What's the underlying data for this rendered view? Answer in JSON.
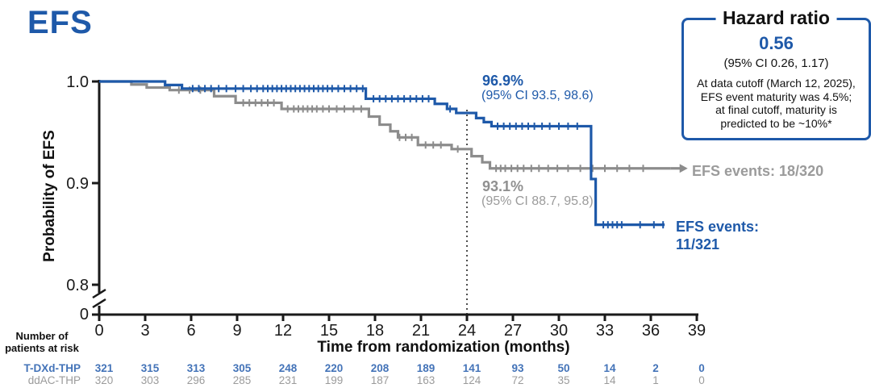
{
  "page": {
    "title": "EFS"
  },
  "colors": {
    "blue": "#1E59A9",
    "blue_light": "#4373B8",
    "gray": "#8C8C8C",
    "gray_text": "#909090",
    "gray_text_light": "#9B9B9B",
    "axis": "#1A1A1A",
    "landmark_line": "#3A3A3A"
  },
  "hazard_box": {
    "title": "Hazard ratio",
    "value": "0.56",
    "ci": "(95% CI 0.26, 1.17)",
    "note_lines": [
      "At data cutoff (March 12, 2025),",
      "EFS event maturity was 4.5%;",
      "at final cutoff, maturity is",
      "predicted to be ~10%*"
    ]
  },
  "chart_data": {
    "type": "line",
    "subtype": "kaplan-meier-step",
    "title": "EFS",
    "xlabel": "Time from randomization (months)",
    "ylabel": "Probability of EFS",
    "x_ticks": [
      0,
      3,
      6,
      9,
      12,
      15,
      18,
      21,
      24,
      27,
      30,
      33,
      36,
      39
    ],
    "xlim": [
      0,
      39
    ],
    "y_ticks": [
      {
        "value": 1.0,
        "label": "1.0"
      },
      {
        "value": 0.9,
        "label": "0.9"
      },
      {
        "value": 0.8,
        "label": "0.8"
      },
      {
        "value": 0.0,
        "label": "0"
      }
    ],
    "y_axis_break_between": [
      0,
      0.8
    ],
    "grid": false,
    "landmark_month": 24,
    "annotations": {
      "tdxd_rate_24m": "96.9%",
      "tdxd_ci_24m": "(95% CI 93.5, 98.6)",
      "ddac_rate_24m": "93.1%",
      "ddac_ci_24m": "(95% CI 88.7, 95.8)",
      "ddac_events": "EFS events: 18/320",
      "tdxd_events_line1": "EFS events:",
      "tdxd_events_line2": "11/321"
    },
    "series": [
      {
        "name": "T-DXd-THP",
        "color": "#1E59A9",
        "rate_at_24m_pct": 96.9,
        "events": "11/321",
        "end_month": 36.9,
        "end_arrow": false,
        "steps": [
          [
            0,
            1.0
          ],
          [
            4.3,
            0.9965
          ],
          [
            5.4,
            0.993
          ],
          [
            17.4,
            0.983
          ],
          [
            21.9,
            0.978
          ],
          [
            22.7,
            0.973
          ],
          [
            23.3,
            0.969
          ],
          [
            24.6,
            0.964
          ],
          [
            25.1,
            0.96
          ],
          [
            25.6,
            0.956
          ],
          [
            32.1,
            0.904
          ],
          [
            32.4,
            0.859
          ]
        ],
        "censor_months": [
          6.1,
          6.5,
          6.9,
          7.3,
          7.8,
          8.3,
          8.9,
          9.4,
          9.9,
          10.3,
          10.7,
          11.0,
          11.3,
          11.6,
          11.9,
          12.2,
          12.5,
          12.8,
          13.1,
          13.4,
          13.7,
          14.0,
          14.3,
          14.6,
          14.9,
          15.2,
          15.6,
          16.0,
          16.4,
          16.8,
          17.2,
          17.9,
          18.3,
          18.7,
          19.1,
          19.5,
          19.9,
          20.3,
          20.7,
          21.1,
          21.5,
          22.9,
          26.0,
          26.4,
          26.8,
          27.2,
          27.6,
          28.0,
          28.4,
          28.9,
          29.4,
          30.0,
          30.6,
          31.2,
          32.9,
          33.2,
          33.5,
          33.8,
          34.1,
          35.3,
          36.2,
          36.8
        ]
      },
      {
        "name": "ddAC-THP",
        "color": "#8C8C8C",
        "rate_at_24m_pct": 93.1,
        "events": "18/320",
        "end_month": 37.3,
        "end_arrow": true,
        "steps": [
          [
            0,
            1.0
          ],
          [
            2.1,
            0.997
          ],
          [
            3.1,
            0.994
          ],
          [
            4.6,
            0.9915
          ],
          [
            7.5,
            0.9855
          ],
          [
            8.9,
            0.979
          ],
          [
            11.9,
            0.973
          ],
          [
            17.6,
            0.9655
          ],
          [
            18.3,
            0.9575
          ],
          [
            19.0,
            0.951
          ],
          [
            19.5,
            0.945
          ],
          [
            20.8,
            0.9375
          ],
          [
            23.0,
            0.9335
          ],
          [
            24.3,
            0.9265
          ],
          [
            25.0,
            0.9205
          ],
          [
            25.5,
            0.9145
          ]
        ],
        "censor_months": [
          5.2,
          5.9,
          6.6,
          9.4,
          9.8,
          10.2,
          10.6,
          11.0,
          11.4,
          12.3,
          12.7,
          13.0,
          13.3,
          13.6,
          13.9,
          14.2,
          14.6,
          15.0,
          15.5,
          16.0,
          16.6,
          17.1,
          19.6,
          20.0,
          20.4,
          21.3,
          21.8,
          22.3,
          23.4,
          25.9,
          26.2,
          26.5,
          26.9,
          27.3,
          27.7,
          28.2,
          28.7,
          29.3,
          29.9,
          30.6,
          31.4,
          32.2,
          33.0,
          33.8,
          34.6,
          35.5
        ]
      }
    ]
  },
  "risk_table": {
    "header_line1": "Number of",
    "header_line2": "patients at risk",
    "rows": [
      {
        "name": "T-DXd-THP",
        "color": "#4373B8",
        "bold": true,
        "values": [
          321,
          315,
          313,
          305,
          248,
          220,
          208,
          189,
          141,
          93,
          50,
          14,
          2,
          0
        ]
      },
      {
        "name": "ddAC-THP",
        "color": "#9B9B9B",
        "bold": false,
        "values": [
          320,
          303,
          296,
          285,
          231,
          199,
          187,
          163,
          124,
          72,
          35,
          14,
          1,
          0
        ]
      }
    ]
  }
}
